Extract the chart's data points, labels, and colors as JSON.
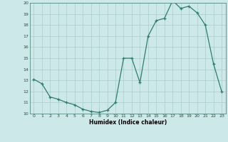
{
  "x": [
    0,
    1,
    2,
    3,
    4,
    5,
    6,
    7,
    8,
    9,
    10,
    11,
    12,
    13,
    14,
    15,
    16,
    17,
    18,
    19,
    20,
    21,
    22,
    23
  ],
  "y": [
    13.1,
    12.7,
    11.5,
    11.3,
    11.0,
    10.8,
    10.4,
    10.2,
    10.1,
    10.3,
    11.0,
    15.0,
    15.0,
    12.8,
    17.0,
    18.4,
    18.6,
    20.2,
    19.5,
    19.7,
    19.1,
    18.0,
    14.5,
    12.0
  ],
  "xlabel": "Humidex (Indice chaleur)",
  "ylim": [
    10,
    20
  ],
  "xlim": [
    -0.5,
    23.5
  ],
  "yticks": [
    10,
    11,
    12,
    13,
    14,
    15,
    16,
    17,
    18,
    19,
    20
  ],
  "xticks": [
    0,
    1,
    2,
    3,
    4,
    5,
    6,
    7,
    8,
    9,
    10,
    11,
    12,
    13,
    14,
    15,
    16,
    17,
    18,
    19,
    20,
    21,
    22,
    23
  ],
  "line_color": "#2e7d6e",
  "marker_color": "#2e7d6e",
  "bg_color": "#cce8e8",
  "grid_color": "#aacccc",
  "xlabel_fontsize": 5.5,
  "tick_fontsize": 4.5,
  "xlabel_fontweight": "bold"
}
